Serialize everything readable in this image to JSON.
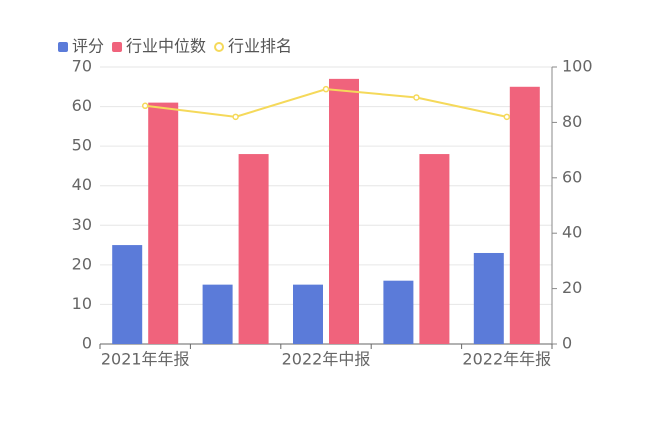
{
  "chart_data": {
    "type": "bar",
    "categories": [
      "2021年年报",
      null,
      "2022年中报",
      null,
      "2022年年报"
    ],
    "series": [
      {
        "name": "评分",
        "color": "#5b7bd9",
        "values": [
          25,
          15,
          15,
          16,
          23
        ]
      },
      {
        "name": "行业中位数",
        "color": "#f0637c",
        "values": [
          61,
          48,
          67,
          48,
          65
        ]
      },
      {
        "name": "行业排名",
        "type": "line",
        "axis": "y2",
        "color": "#f5d95a",
        "values": [
          86,
          82,
          92,
          89,
          82
        ]
      }
    ],
    "ylim": [
      0,
      70
    ],
    "yticks": [
      0,
      10,
      20,
      30,
      40,
      50,
      60,
      70
    ],
    "y2lim": [
      0,
      100
    ],
    "y2ticks": [
      0,
      20,
      40,
      60,
      80,
      100
    ],
    "grid": true
  }
}
